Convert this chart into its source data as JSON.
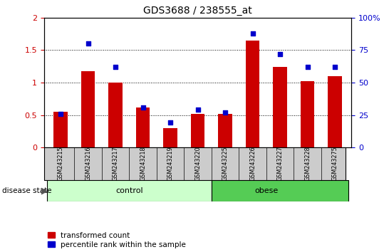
{
  "title": "GDS3688 / 238555_at",
  "categories": [
    "GSM243215",
    "GSM243216",
    "GSM243217",
    "GSM243218",
    "GSM243219",
    "GSM243220",
    "GSM243225",
    "GSM243226",
    "GSM243227",
    "GSM243228",
    "GSM243275"
  ],
  "transformed_count": [
    0.55,
    1.18,
    1.0,
    0.62,
    0.3,
    0.52,
    0.52,
    1.65,
    1.24,
    1.02,
    1.1
  ],
  "percentile_rank_pct": [
    26,
    80,
    62,
    31,
    19,
    29,
    27,
    88,
    72,
    62,
    62
  ],
  "group_labels": [
    "control",
    "obese"
  ],
  "group_control_count": 6,
  "group_obese_count": 5,
  "left_ylim": [
    0,
    2
  ],
  "right_ylim": [
    0,
    100
  ],
  "left_yticks": [
    0,
    0.5,
    1.0,
    1.5,
    2.0
  ],
  "right_yticks": [
    0,
    25,
    50,
    75,
    100
  ],
  "left_yticklabels": [
    "0",
    "0.5",
    "1",
    "1.5",
    "2"
  ],
  "right_yticklabels": [
    "0",
    "25",
    "50",
    "75",
    "100%"
  ],
  "bar_color": "#cc0000",
  "dot_color": "#0000cc",
  "control_bg": "#ccffcc",
  "obese_bg": "#55cc55",
  "label_bg": "#cccccc",
  "bar_width": 0.5,
  "dot_size": 22,
  "legend_red": "transformed count",
  "legend_blue": "percentile rank within the sample",
  "disease_state_label": "disease state"
}
